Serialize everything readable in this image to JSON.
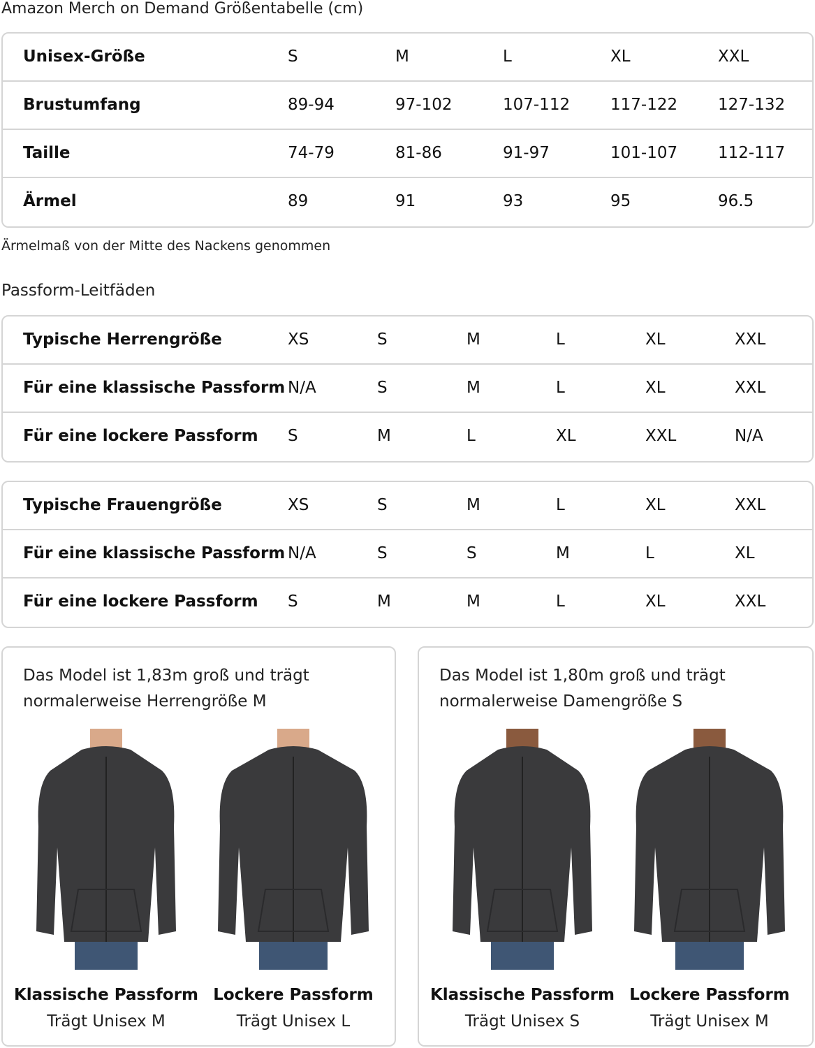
{
  "title": "Amazon Merch on Demand Größentabelle (cm)",
  "unisex_table": {
    "rows": [
      {
        "label": "Unisex-Größe",
        "values": [
          "S",
          "M",
          "L",
          "XL",
          "XXL"
        ]
      },
      {
        "label": "Brustumfang",
        "values": [
          "89-94",
          "97-102",
          "107-112",
          "117-122",
          "127-132"
        ]
      },
      {
        "label": "Taille",
        "values": [
          "74-79",
          "81-86",
          "91-97",
          "101-107",
          "112-117"
        ]
      },
      {
        "label": "Ärmel",
        "values": [
          "89",
          "91",
          "93",
          "95",
          "96.5"
        ]
      }
    ]
  },
  "note": "Ärmelmaß von der Mitte des Nackens genommen",
  "fit_guides_title": "Passform-Leitfäden",
  "men_table": {
    "rows": [
      {
        "label": "Typische Herrengröße",
        "values": [
          "XS",
          "S",
          "M",
          "L",
          "XL",
          "XXL"
        ]
      },
      {
        "label": "Für eine klassische Passform",
        "values": [
          "N/A",
          "S",
          "M",
          "L",
          "XL",
          "XXL"
        ]
      },
      {
        "label": "Für eine lockere Passform",
        "values": [
          "S",
          "M",
          "L",
          "XL",
          "XXL",
          "N/A"
        ]
      }
    ]
  },
  "women_table": {
    "rows": [
      {
        "label": "Typische Frauengröße",
        "values": [
          "XS",
          "S",
          "M",
          "L",
          "XL",
          "XXL"
        ]
      },
      {
        "label": "Für eine klassische Passform",
        "values": [
          "N/A",
          "S",
          "S",
          "M",
          "L",
          "XL"
        ]
      },
      {
        "label": "Für eine lockere Passform",
        "values": [
          "S",
          "M",
          "M",
          "L",
          "XL",
          "XXL"
        ]
      }
    ]
  },
  "cards": [
    {
      "caption": "Das Model ist 1,83m groß und trägt normalerweise Herrengröße M",
      "figures": [
        {
          "fit": "Klassische Passform",
          "wears": "Trägt Unisex M"
        },
        {
          "fit": "Lockere Passform",
          "wears": "Trägt Unisex L"
        }
      ]
    },
    {
      "caption": "Das Model ist 1,80m groß und trägt normalerweise Damengröße S",
      "figures": [
        {
          "fit": "Klassische Passform",
          "wears": "Trägt Unisex S"
        },
        {
          "fit": "Lockere Passform",
          "wears": "Trägt Unisex M"
        }
      ]
    }
  ],
  "colors": {
    "border": "#d5d5d5",
    "hoodie": "#3a3a3c",
    "jeans": "#3f5674",
    "skin_men": "#d9a98a",
    "skin_women": "#8a5a3e"
  }
}
